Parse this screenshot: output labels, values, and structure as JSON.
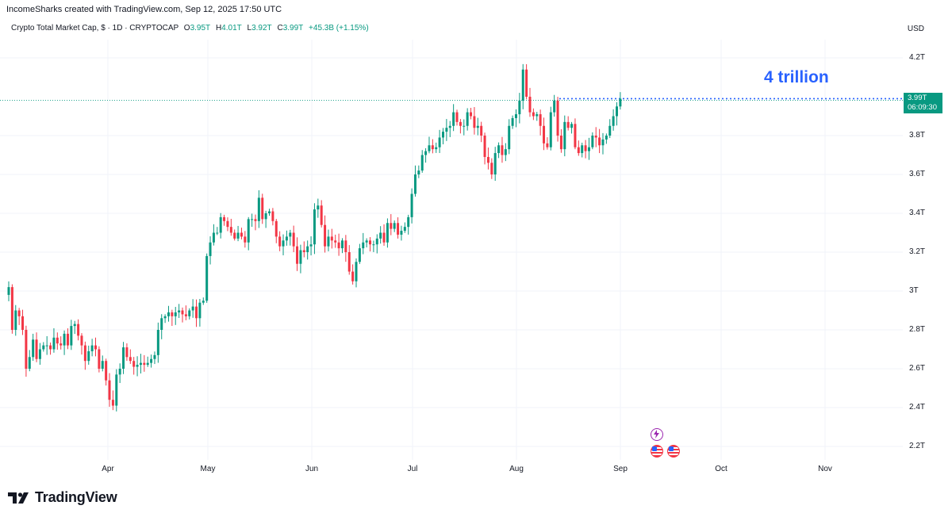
{
  "header": {
    "credit": "IncomeSharks created with TradingView.com, Sep 12, 2025 17:50 UTC",
    "symbol": "Crypto Total Market Cap, $ · 1D · CRYPTOCAP",
    "o_label": "O",
    "o_value": "3.95T",
    "h_label": "H",
    "h_value": "4.01T",
    "l_label": "L",
    "l_value": "3.92T",
    "c_label": "C",
    "c_value": "3.99T",
    "change": "+45.3B (+1.15%)",
    "currency": "USD"
  },
  "annotation": {
    "text": "4 trillion",
    "level": 3.99
  },
  "price_tag": {
    "price": "3.99T",
    "countdown": "06:09:30"
  },
  "brand": {
    "name": "TradingView"
  },
  "colors": {
    "up": "#089981",
    "down": "#f23645",
    "annotation": "#2962ff",
    "grid": "#f0f3fa"
  },
  "icons": [
    "lightning-event-icon",
    "us-flag-event-icon",
    "us-flag-event-icon"
  ],
  "chart_data": {
    "type": "candlestick",
    "title": "Crypto Total Market Cap",
    "interval": "1D",
    "unit": "T USD",
    "y_ticks": [
      "2.2T",
      "2.4T",
      "2.6T",
      "2.8T",
      "3T",
      "3.2T",
      "3.4T",
      "3.6T",
      "3.8T",
      "4.2T"
    ],
    "y_tick_values": [
      2.2,
      2.4,
      2.6,
      2.8,
      3.0,
      3.2,
      3.4,
      3.6,
      3.8,
      4.2
    ],
    "x_ticks": [
      "Apr",
      "May",
      "Jun",
      "Jul",
      "Aug",
      "Sep",
      "Oct",
      "Nov"
    ],
    "ylim": [
      2.13,
      4.38
    ],
    "grid": true,
    "close": [
      3.02,
      2.8,
      2.9,
      2.87,
      2.8,
      2.6,
      2.66,
      2.75,
      2.65,
      2.7,
      2.72,
      2.72,
      2.7,
      2.76,
      2.73,
      2.72,
      2.78,
      2.72,
      2.82,
      2.83,
      2.77,
      2.72,
      2.64,
      2.69,
      2.72,
      2.7,
      2.6,
      2.64,
      2.54,
      2.44,
      2.41,
      2.57,
      2.6,
      2.71,
      2.66,
      2.64,
      2.61,
      2.62,
      2.63,
      2.62,
      2.63,
      2.65,
      2.67,
      2.8,
      2.86,
      2.87,
      2.89,
      2.87,
      2.89,
      2.9,
      2.88,
      2.87,
      2.9,
      2.92,
      2.86,
      2.94,
      2.95,
      3.18,
      3.25,
      3.3,
      3.3,
      3.38,
      3.36,
      3.33,
      3.3,
      3.27,
      3.3,
      3.28,
      3.25,
      3.37,
      3.37,
      3.36,
      3.48,
      3.37,
      3.4,
      3.41,
      3.36,
      3.28,
      3.23,
      3.26,
      3.28,
      3.3,
      3.23,
      3.14,
      3.21,
      3.2,
      3.23,
      3.24,
      3.42,
      3.44,
      3.34,
      3.23,
      3.28,
      3.26,
      3.25,
      3.22,
      3.26,
      3.2,
      3.1,
      3.05,
      3.15,
      3.22,
      3.25,
      3.26,
      3.24,
      3.24,
      3.27,
      3.3,
      3.25,
      3.35,
      3.32,
      3.35,
      3.29,
      3.31,
      3.33,
      3.38,
      3.5,
      3.6,
      3.62,
      3.7,
      3.72,
      3.75,
      3.73,
      3.74,
      3.79,
      3.82,
      3.84,
      3.85,
      3.92,
      3.87,
      3.85,
      3.85,
      3.92,
      3.9,
      3.84,
      3.85,
      3.8,
      3.69,
      3.66,
      3.6,
      3.71,
      3.75,
      3.7,
      3.73,
      3.85,
      3.89,
      3.91,
      3.98,
      4.14,
      4.0,
      3.92,
      3.9,
      3.91,
      3.85,
      3.76,
      3.74,
      3.92,
      3.98,
      3.8,
      3.73,
      3.87,
      3.84,
      3.86,
      3.74,
      3.71,
      3.75,
      3.72,
      3.74,
      3.8,
      3.79,
      3.75,
      3.78,
      3.8,
      3.85,
      3.9,
      3.95,
      3.99
    ]
  }
}
